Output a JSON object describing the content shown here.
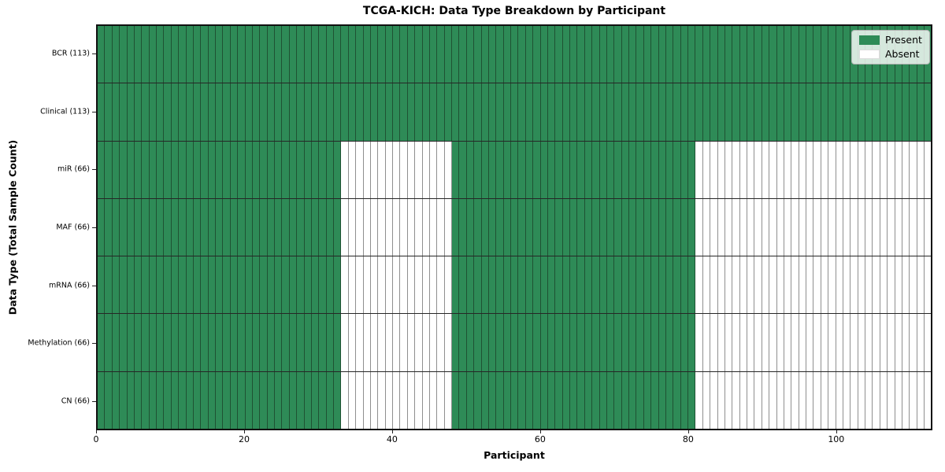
{
  "chart_data": {
    "type": "heatmap",
    "title": "TCGA-KICH: Data Type Breakdown by Participant",
    "xlabel": "Participant",
    "ylabel": "Data Type (Total Sample Count)",
    "n_participants": 113,
    "xlim": [
      0,
      113
    ],
    "x_ticks": [
      0,
      20,
      40,
      60,
      80,
      100
    ],
    "grid": "cell-borders",
    "categories": [
      "BCR (113)",
      "Clinical (113)",
      "miR (66)",
      "MAF (66)",
      "mRNA (66)",
      "Methylation (66)",
      "CN (66)"
    ],
    "rows": [
      {
        "label": "BCR (113)",
        "data_type": "BCR",
        "total_sample_count": 113,
        "present_ranges": [
          [
            0,
            113
          ]
        ]
      },
      {
        "label": "Clinical (113)",
        "data_type": "Clinical",
        "total_sample_count": 113,
        "present_ranges": [
          [
            0,
            113
          ]
        ]
      },
      {
        "label": "miR (66)",
        "data_type": "miR",
        "total_sample_count": 66,
        "present_ranges": [
          [
            0,
            33
          ],
          [
            48,
            81
          ]
        ]
      },
      {
        "label": "MAF (66)",
        "data_type": "MAF",
        "total_sample_count": 66,
        "present_ranges": [
          [
            0,
            33
          ],
          [
            48,
            81
          ]
        ]
      },
      {
        "label": "mRNA (66)",
        "data_type": "mRNA",
        "total_sample_count": 66,
        "present_ranges": [
          [
            0,
            33
          ],
          [
            48,
            81
          ]
        ]
      },
      {
        "label": "Methylation (66)",
        "data_type": "Methylation",
        "total_sample_count": 66,
        "present_ranges": [
          [
            0,
            33
          ],
          [
            48,
            81
          ]
        ]
      },
      {
        "label": "CN (66)",
        "data_type": "CN",
        "total_sample_count": 66,
        "present_ranges": [
          [
            0,
            33
          ],
          [
            48,
            81
          ]
        ]
      }
    ],
    "legend": {
      "position": "upper-right",
      "items": [
        {
          "label": "Present",
          "color": "#2e8b57"
        },
        {
          "label": "Absent",
          "color": "#ffffff"
        }
      ]
    },
    "colors": {
      "present": "#2e8b57",
      "absent": "#ffffff",
      "cell_edge_on_present": "#1f5233",
      "cell_edge_on_absent": "#8f8f8f",
      "row_divider": "#262626",
      "spine": "#111111",
      "background": "#ffffff"
    }
  }
}
